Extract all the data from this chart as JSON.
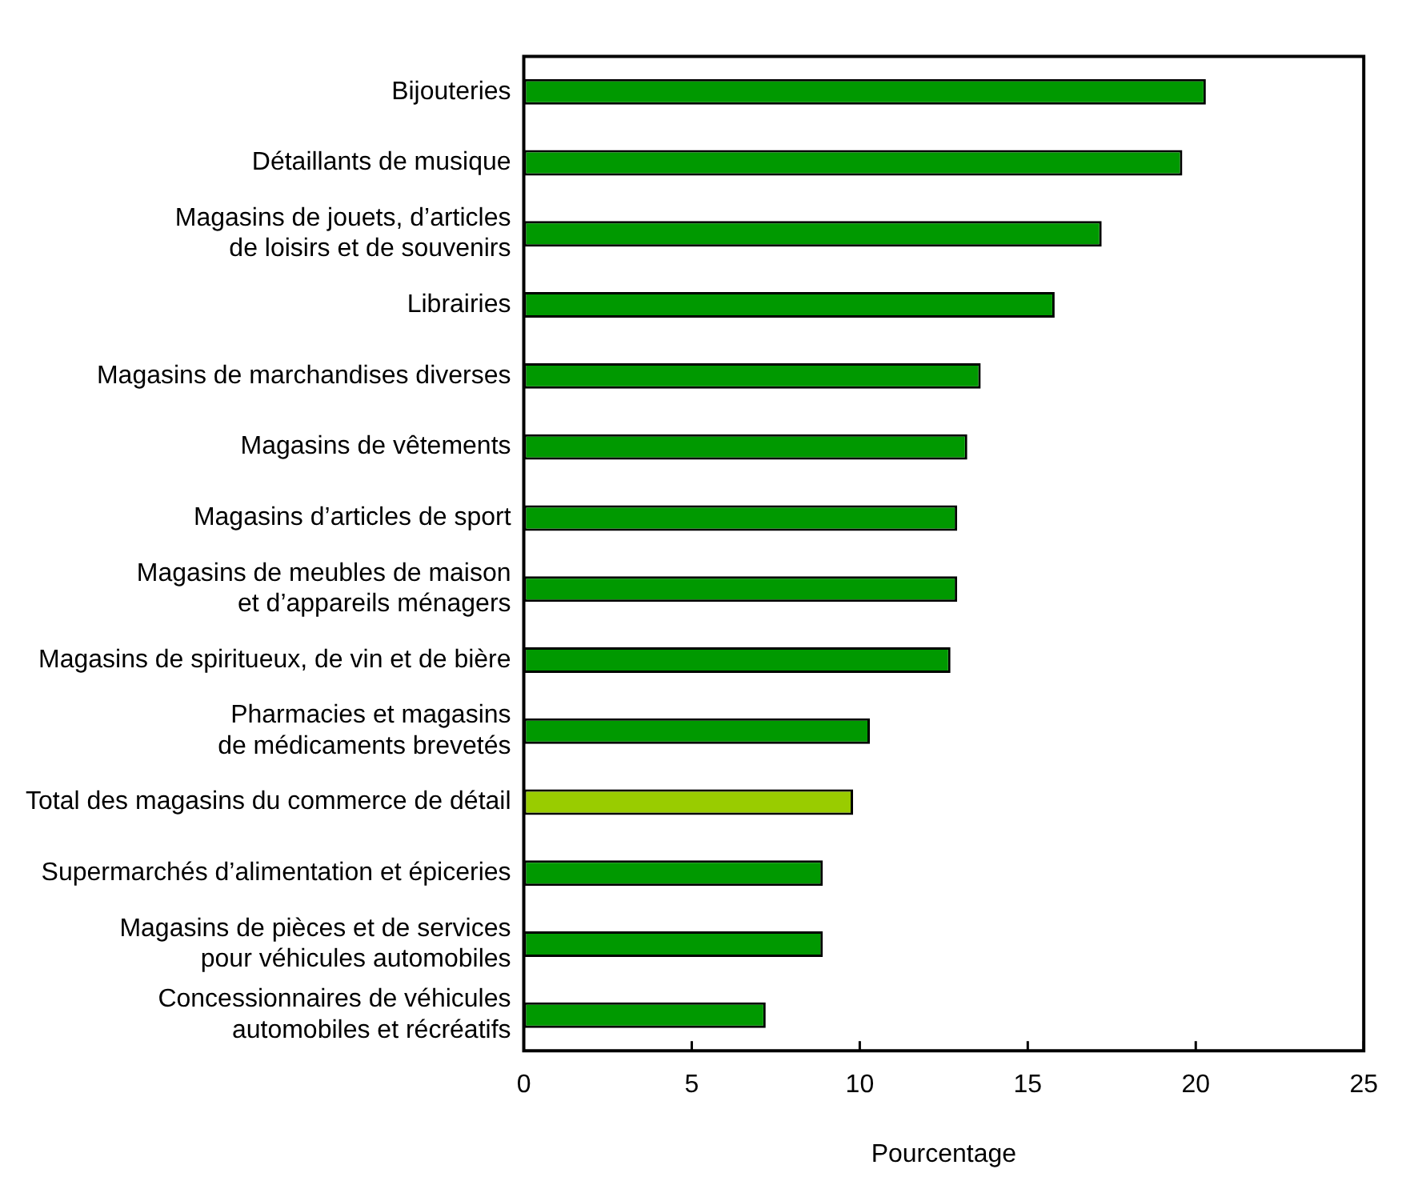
{
  "chart_data": {
    "type": "bar",
    "orientation": "horizontal",
    "xlabel": "Pourcentage",
    "categories": [
      "Bijouteries",
      "Détaillants de musique",
      "Magasins de jouets, d’articles\nde loisirs et de souvenirs",
      "Librairies",
      "Magasins de marchandises diverses",
      "Magasins de vêtements",
      "Magasins d’articles de sport",
      "Magasins de meubles de maison\net d’appareils ménagers",
      "Magasins de spiritueux, de vin et de bière",
      "Pharmacies et magasins\nde médicaments brevetés",
      "Total des magasins du commerce de détail",
      "Supermarchés d’alimentation et épiceries",
      "Magasins de pièces et de services\npour véhicules automobiles",
      "Concessionnaires de véhicules\nautomobiles et récréatifs"
    ],
    "values": [
      20.3,
      19.6,
      17.2,
      15.8,
      13.6,
      13.2,
      12.9,
      12.9,
      12.7,
      10.3,
      9.8,
      8.9,
      8.9,
      7.2
    ],
    "colors": [
      "#009900",
      "#009900",
      "#009900",
      "#009900",
      "#009900",
      "#009900",
      "#009900",
      "#009900",
      "#009900",
      "#009900",
      "#99cc00",
      "#009900",
      "#009900",
      "#009900"
    ],
    "xlim": [
      0,
      25
    ],
    "xticks": [
      0,
      5,
      10,
      15,
      20,
      25
    ]
  }
}
